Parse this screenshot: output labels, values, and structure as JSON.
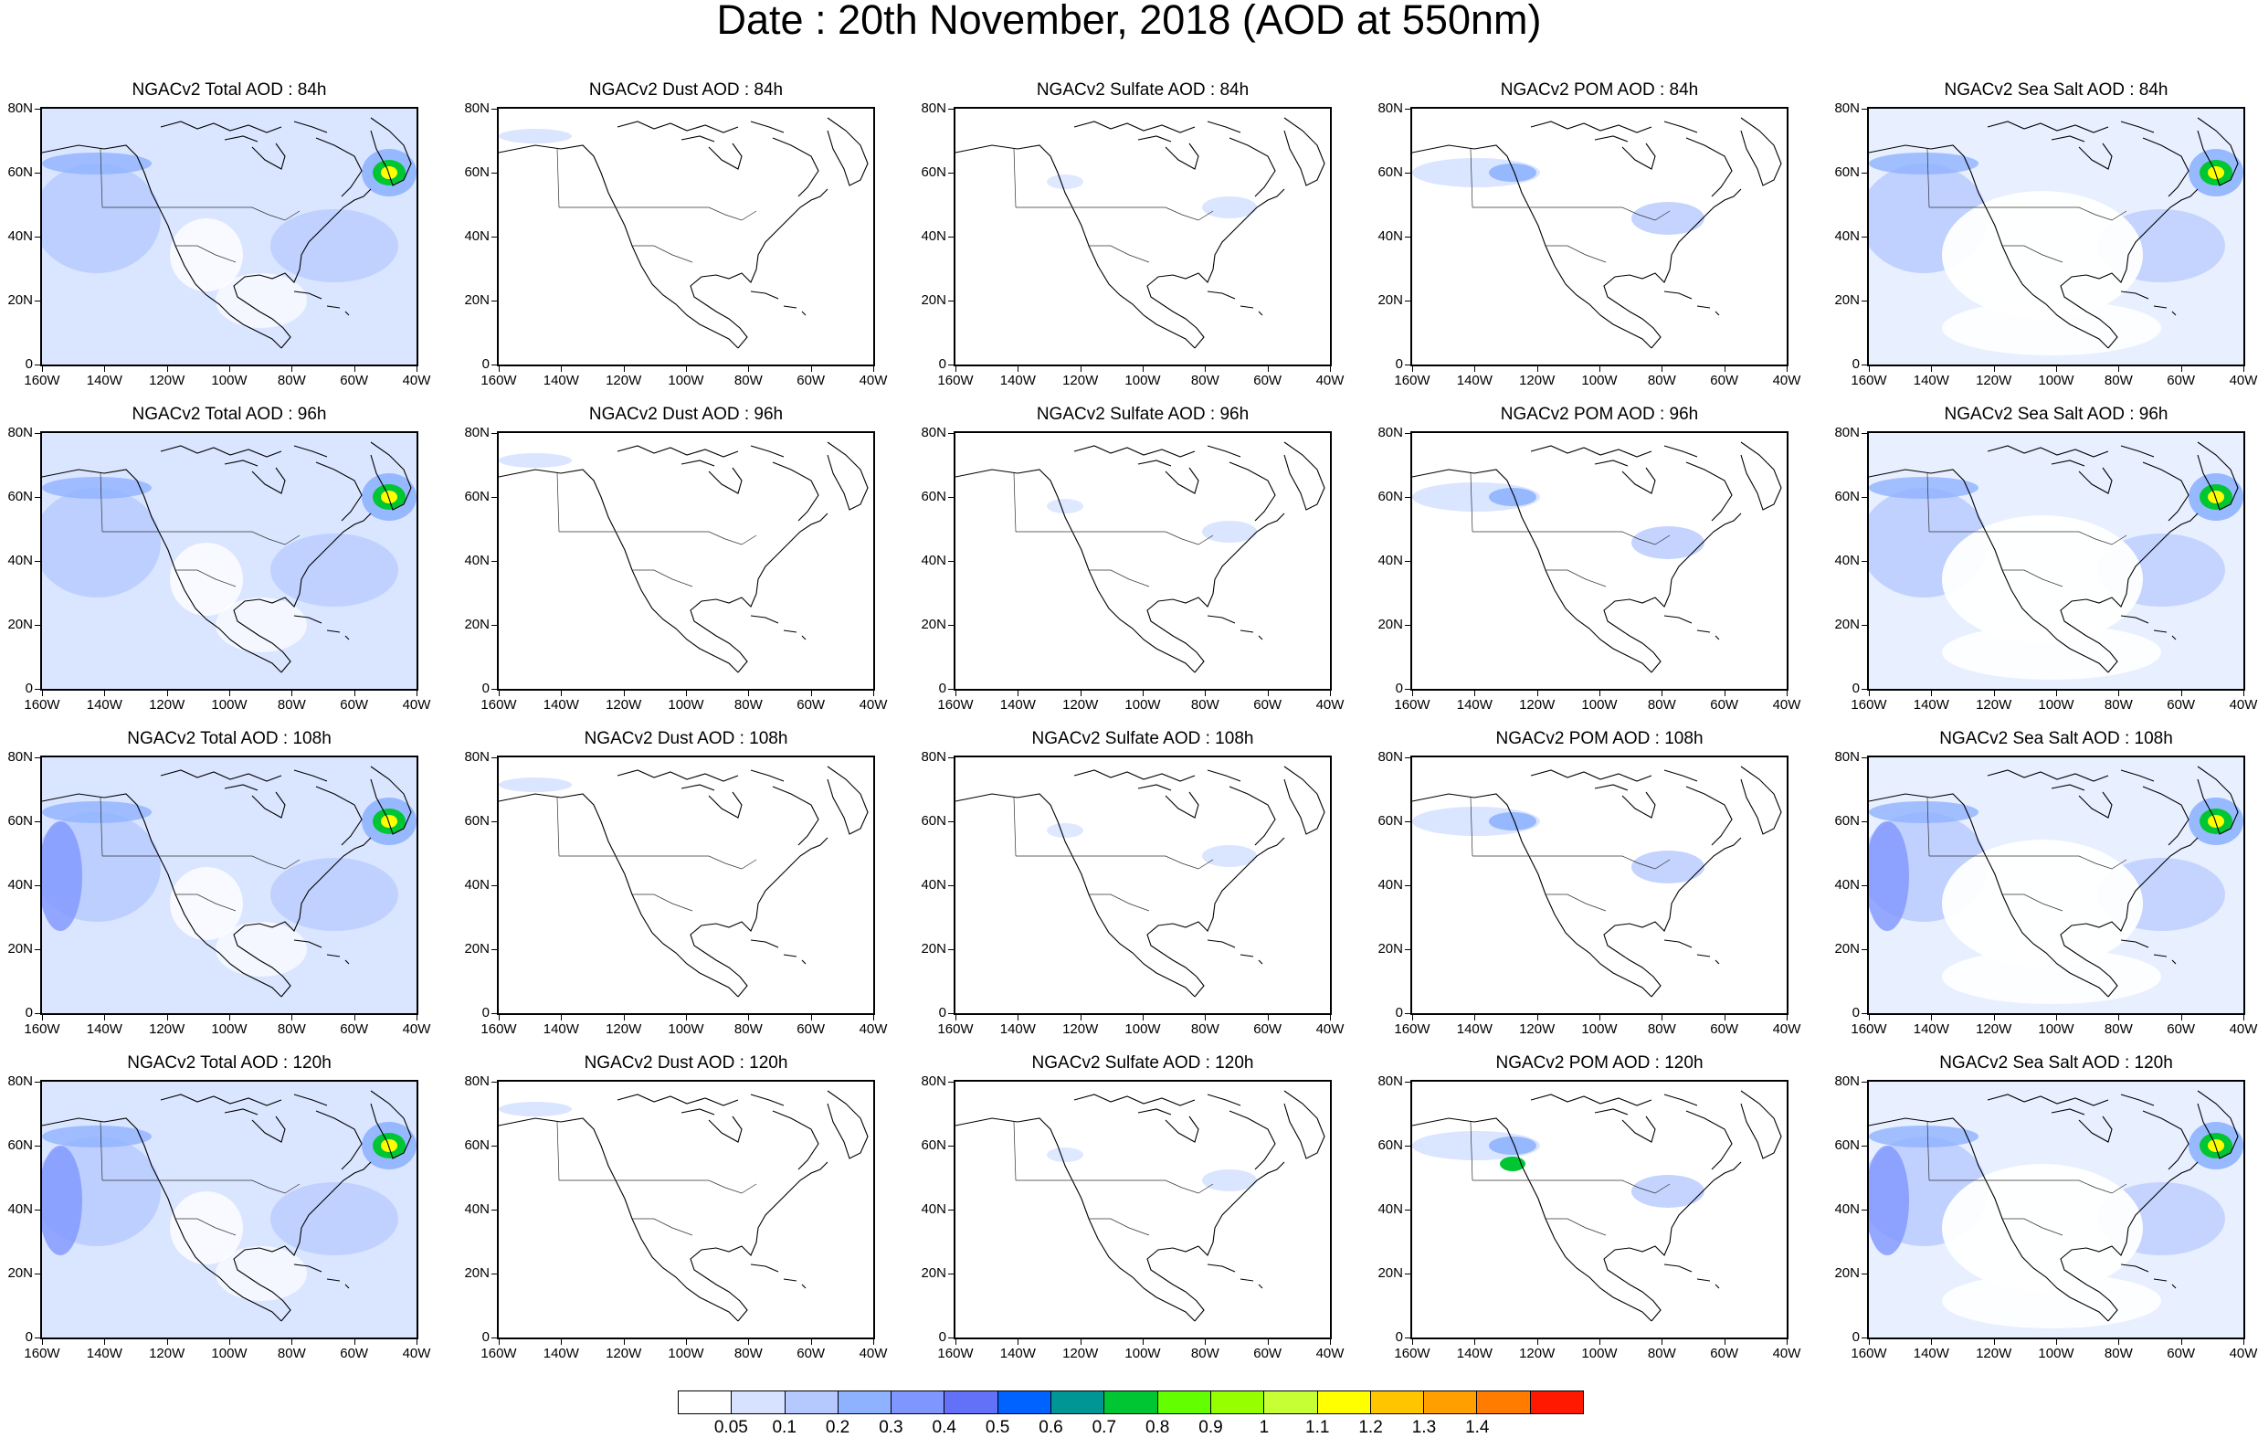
{
  "title": "Date : 20th November, 2018 (AOD at 550nm)",
  "panel_titles": [
    [
      "NGACv2 Total AOD : 84h",
      "NGACv2 Dust AOD : 84h",
      "NGACv2 Sulfate AOD : 84h",
      "NGACv2 POM AOD : 84h",
      "NGACv2 Sea Salt AOD : 84h"
    ],
    [
      "NGACv2 Total AOD : 96h",
      "NGACv2 Dust AOD : 96h",
      "NGACv2 Sulfate AOD : 96h",
      "NGACv2 POM AOD : 96h",
      "NGACv2 Sea Salt AOD : 96h"
    ],
    [
      "NGACv2 Total AOD : 108h",
      "NGACv2 Dust AOD : 108h",
      "NGACv2 Sulfate AOD : 108h",
      "NGACv2 POM AOD : 108h",
      "NGACv2 Sea Salt AOD : 108h"
    ],
    [
      "NGACv2 Total AOD : 120h",
      "NGACv2 Dust AOD : 120h",
      "NGACv2 Sulfate AOD : 120h",
      "NGACv2 POM AOD : 120h",
      "NGACv2 Sea Salt  AOD : 120h"
    ]
  ],
  "y_ticks": [
    "80N",
    "60N",
    "40N",
    "20N",
    "0"
  ],
  "x_ticks": [
    "160W",
    "140W",
    "120W",
    "100W",
    "80W",
    "60W",
    "40W"
  ],
  "colorbar": {
    "colors": [
      "#ffffff",
      "#d6e2ff",
      "#b5c9ff",
      "#8eb2ff",
      "#7f96ff",
      "#6370f8",
      "#0063ff",
      "#009696",
      "#00c633",
      "#63ff00",
      "#96ff00",
      "#c6ff33",
      "#ffff00",
      "#ffc600",
      "#ffa000",
      "#ff7c00",
      "#ff1900"
    ],
    "labels": [
      "0.05",
      "0.1",
      "0.2",
      "0.3",
      "0.4",
      "0.5",
      "0.6",
      "0.7",
      "0.8",
      "0.9",
      "1",
      "1.1",
      "1.2",
      "1.3",
      "1.4"
    ]
  }
}
